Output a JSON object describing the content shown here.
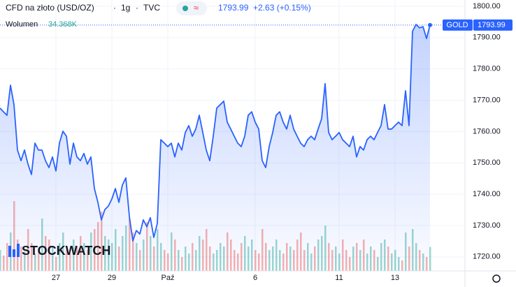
{
  "chart_data": {
    "type": "line",
    "title": "CFD na złoto (USD/OZ)",
    "interval": "1g",
    "source": "TVC",
    "change_label": "+2.63 (+0.15%)",
    "symbol_tag": "GOLD",
    "watermark": "STOCKWATCH",
    "ylim": [
      1715.5,
      1802
    ],
    "yticks": [
      {
        "value": 1720,
        "label": "1720.00"
      },
      {
        "value": 1730,
        "label": "1730.00"
      },
      {
        "value": 1740,
        "label": "1740.00"
      },
      {
        "value": 1750,
        "label": "1750.00"
      },
      {
        "value": 1760,
        "label": "1760.00"
      },
      {
        "value": 1770,
        "label": "1770.00"
      },
      {
        "value": 1780,
        "label": "1780.00"
      },
      {
        "value": 1790,
        "label": "1790.00"
      },
      {
        "value": 1800,
        "label": "1800.00"
      }
    ],
    "grid": true,
    "categories": [
      null,
      null,
      null,
      null,
      null,
      null,
      null,
      null,
      null,
      null,
      null,
      null,
      null,
      null,
      null,
      null,
      "27",
      null,
      null,
      null,
      null,
      null,
      null,
      null,
      null,
      null,
      null,
      null,
      null,
      null,
      null,
      null,
      "29",
      null,
      null,
      null,
      null,
      null,
      null,
      null,
      null,
      null,
      null,
      null,
      null,
      null,
      null,
      null,
      "Paź",
      null,
      null,
      null,
      null,
      null,
      null,
      null,
      null,
      null,
      null,
      null,
      null,
      null,
      null,
      null,
      null,
      null,
      null,
      null,
      null,
      null,
      null,
      null,
      null,
      "6",
      null,
      null,
      null,
      null,
      null,
      null,
      null,
      null,
      null,
      null,
      null,
      null,
      null,
      null,
      null,
      null,
      null,
      null,
      null,
      null,
      null,
      null,
      null,
      "11",
      null,
      null,
      null,
      null,
      null,
      null,
      null,
      null,
      null,
      null,
      null,
      null,
      null,
      null,
      null,
      "13",
      null,
      null,
      null,
      null,
      null,
      null,
      null,
      null,
      null,
      null
    ],
    "series": [
      {
        "name": "CFD na złoto",
        "color": "#2962ff",
        "values": [
          1767.5,
          1766.3,
          1765.2,
          1774.8,
          1768.6,
          1754.1,
          1750.7,
          1754.1,
          1749.6,
          1746.3,
          1756.3,
          1754.1,
          1754.1,
          1750.7,
          1748.5,
          1751.9,
          1747.4,
          1756.3,
          1760.1,
          1758.5,
          1749.6,
          1756.3,
          1751.9,
          1750.7,
          1753.0,
          1749.6,
          1751.9,
          1741.8,
          1737.4,
          1731.8,
          1735.1,
          1736.2,
          1738.5,
          1741.8,
          1737.4,
          1742.9,
          1745.2,
          1732.9,
          1725.1,
          1728.4,
          1727.3,
          1731.8,
          1729.6,
          1732.5,
          1726.2,
          1730.7,
          1757.4,
          1756.3,
          1755.2,
          1756.3,
          1751.9,
          1756.3,
          1754.1,
          1759.7,
          1761.9,
          1758.5,
          1760.8,
          1765.2,
          1759.7,
          1754.1,
          1750.7,
          1758.5,
          1767.5,
          1768.6,
          1769.7,
          1763.0,
          1760.8,
          1758.5,
          1756.3,
          1755.2,
          1758.5,
          1765.2,
          1766.3,
          1763.0,
          1760.8,
          1750.7,
          1748.5,
          1755.2,
          1759.7,
          1765.2,
          1766.3,
          1763.0,
          1760.8,
          1765.2,
          1760.8,
          1758.5,
          1756.3,
          1755.2,
          1757.4,
          1758.5,
          1757.4,
          1760.8,
          1764.1,
          1775.3,
          1759.7,
          1757.4,
          1758.5,
          1759.7,
          1757.4,
          1756.3,
          1755.2,
          1758.5,
          1751.9,
          1755.2,
          1754.1,
          1757.4,
          1758.5,
          1757.4,
          1759.7,
          1761.9,
          1768.6,
          1760.8,
          1760.8,
          1761.9,
          1763.0,
          1761.9,
          1773.0,
          1761.9,
          1792.0,
          1794.2,
          1793.1,
          1793.5,
          1789.7,
          1793.99
        ]
      }
    ],
    "volume": {
      "name": "Wolumen",
      "ylim": [
        0,
        100
      ],
      "up_color": "#26a69a",
      "down_color": "#ef5350",
      "last": {
        "value": 34.368,
        "label": "34.368K"
      },
      "values": [
        30,
        22,
        40,
        55,
        100,
        45,
        35,
        28,
        60,
        40,
        25,
        30,
        75,
        50,
        45,
        35,
        20,
        40,
        55,
        30,
        25,
        45,
        35,
        50,
        40,
        30,
        55,
        60,
        70,
        85,
        50,
        45,
        40,
        60,
        35,
        50,
        65,
        75,
        55,
        40,
        30,
        45,
        70,
        50,
        35,
        60,
        40,
        30,
        25,
        55,
        45,
        30,
        20,
        35,
        25,
        40,
        30,
        50,
        45,
        60,
        35,
        25,
        30,
        40,
        35,
        55,
        45,
        30,
        25,
        40,
        50,
        35,
        45,
        30,
        25,
        60,
        40,
        30,
        35,
        45,
        30,
        25,
        40,
        35,
        30,
        45,
        55,
        30,
        40,
        25,
        35,
        45,
        50,
        65,
        40,
        30,
        35,
        25,
        45,
        30,
        20,
        35,
        40,
        30,
        45,
        25,
        35,
        30,
        20,
        40,
        45,
        35,
        25,
        30,
        20,
        15,
        55,
        35,
        60,
        40,
        30,
        25,
        20,
        34.368
      ]
    }
  }
}
